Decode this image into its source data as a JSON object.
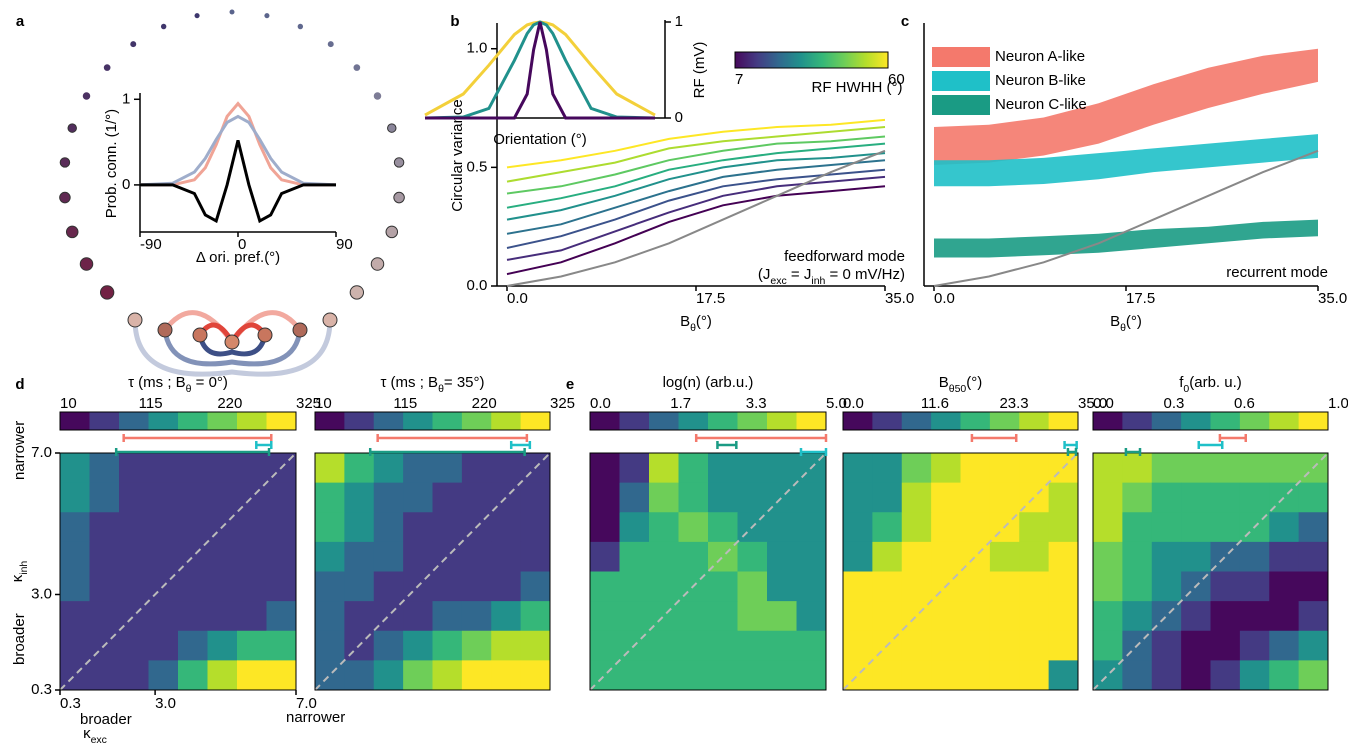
{
  "panel_labels": [
    "a",
    "b",
    "c",
    "d",
    "e"
  ],
  "colormap": [
    "#46085c",
    "#443a83",
    "#31688e",
    "#21918c",
    "#35b779",
    "#6ece58",
    "#b5de2b",
    "#fde725"
  ],
  "chart_data": [
    {
      "type": "line",
      "xlabel": "Δ ori. pref.(°)",
      "ylabel": "Prob. conn. (1/°)",
      "x": [
        -90,
        -60,
        -40,
        -30,
        -20,
        -10,
        0,
        10,
        20,
        30,
        40,
        60,
        90
      ],
      "series": [
        {
          "color": "#f0a496",
          "values": [
            0,
            0,
            0.06,
            0.2,
            0.47,
            0.8,
            0.95,
            0.8,
            0.47,
            0.2,
            0.06,
            0,
            0
          ]
        },
        {
          "color": "#9fadcb",
          "values": [
            0,
            0.02,
            0.15,
            0.31,
            0.53,
            0.73,
            0.8,
            0.73,
            0.53,
            0.31,
            0.15,
            0.02,
            0
          ]
        },
        {
          "color": "#000000",
          "values": [
            0,
            0,
            -0.1,
            -0.35,
            -0.42,
            0,
            0.52,
            0,
            -0.42,
            -0.35,
            -0.1,
            0,
            0
          ]
        }
      ],
      "xlim": [
        -90,
        90
      ],
      "ylim": [
        -0.55,
        1.05
      ],
      "xticks": [
        -90,
        0,
        90
      ],
      "yticks": [
        0,
        1
      ]
    },
    {
      "type": "line",
      "ylabel": "Circular variance",
      "xlabel": [
        "B",
        "θ",
        "(°)"
      ],
      "x": [
        0,
        5,
        10,
        15,
        20,
        25,
        30,
        35
      ],
      "series": [
        {
          "color": "#440154",
          "values": [
            0.05,
            0.1,
            0.18,
            0.27,
            0.34,
            0.38,
            0.4,
            0.42
          ]
        },
        {
          "color": "#472d7b",
          "values": [
            0.11,
            0.15,
            0.23,
            0.31,
            0.38,
            0.42,
            0.44,
            0.46
          ]
        },
        {
          "color": "#3b528b",
          "values": [
            0.16,
            0.21,
            0.28,
            0.36,
            0.42,
            0.45,
            0.47,
            0.49
          ]
        },
        {
          "color": "#2c728e",
          "values": [
            0.22,
            0.26,
            0.33,
            0.4,
            0.46,
            0.49,
            0.51,
            0.53
          ]
        },
        {
          "color": "#21918c",
          "values": [
            0.28,
            0.32,
            0.38,
            0.45,
            0.5,
            0.53,
            0.54,
            0.56
          ]
        },
        {
          "color": "#28ae80",
          "values": [
            0.33,
            0.37,
            0.42,
            0.49,
            0.53,
            0.56,
            0.58,
            0.6
          ]
        },
        {
          "color": "#5ec962",
          "values": [
            0.39,
            0.42,
            0.47,
            0.53,
            0.57,
            0.6,
            0.61,
            0.63
          ]
        },
        {
          "color": "#addc30",
          "values": [
            0.44,
            0.48,
            0.52,
            0.58,
            0.61,
            0.63,
            0.65,
            0.67
          ]
        },
        {
          "color": "#fde725",
          "values": [
            0.5,
            0.53,
            0.57,
            0.62,
            0.65,
            0.67,
            0.68,
            0.7
          ]
        },
        {
          "color": "#888888",
          "values": [
            0,
            0.04,
            0.1,
            0.18,
            0.28,
            0.38,
            0.48,
            0.57
          ]
        }
      ],
      "xlim": [
        0,
        35
      ],
      "ylim": [
        0,
        1.1
      ],
      "xticks": [
        {
          "value": 0,
          "label": "0.0"
        },
        17.5,
        {
          "value": 35,
          "label": "35.0"
        }
      ],
      "yticks": [
        {
          "value": 0,
          "label": "0.0"
        },
        0.5,
        {
          "value": 1,
          "label": "1.0"
        }
      ],
      "annotations": [
        "feedforward mode",
        [
          "(J",
          "exc",
          " = J",
          "inh",
          " = 0 mV/Hz)"
        ]
      ]
    },
    {
      "type": "line",
      "xlabel": "Orientation (°)",
      "ylabel": "RF (mV)",
      "x": [
        -90,
        -60,
        -40,
        -20,
        -10,
        -5,
        0,
        5,
        10,
        20,
        40,
        60,
        90
      ],
      "series": [
        {
          "color": "#f3d03a",
          "values": [
            0.03,
            0.25,
            0.55,
            0.87,
            0.97,
            0.99,
            1,
            0.99,
            0.97,
            0.87,
            0.55,
            0.25,
            0.03
          ]
        },
        {
          "color": "#21918c",
          "values": [
            0,
            0.01,
            0.1,
            0.6,
            0.88,
            0.97,
            1,
            0.97,
            0.88,
            0.6,
            0.1,
            0.01,
            0
          ]
        },
        {
          "color": "#46085c",
          "values": [
            0,
            0,
            0,
            0,
            0.25,
            0.71,
            1,
            0.71,
            0.25,
            0,
            0,
            0,
            0
          ]
        }
      ],
      "xlim": [
        -90,
        90
      ],
      "ylim": [
        0,
        1
      ],
      "yticks": [
        0,
        1
      ],
      "colorbar": {
        "label": "RF HWHH (°)",
        "lim": [
          7,
          60
        ],
        "ticks": [
          7,
          60
        ]
      }
    },
    {
      "type": "band",
      "xlabel": [
        "B",
        "θ",
        "(°)"
      ],
      "x": [
        0,
        5,
        10,
        15,
        20,
        25,
        30,
        35
      ],
      "series": [
        {
          "name": "Neuron A-like",
          "color": "#f4796c",
          "low": [
            0.51,
            0.52,
            0.55,
            0.6,
            0.68,
            0.75,
            0.81,
            0.86
          ],
          "high": [
            0.67,
            0.68,
            0.71,
            0.77,
            0.85,
            0.92,
            0.97,
            1
          ]
        },
        {
          "name": "Neuron B-like",
          "color": "#1fc0c8",
          "low": [
            0.42,
            0.42,
            0.43,
            0.45,
            0.48,
            0.5,
            0.52,
            0.54
          ],
          "high": [
            0.53,
            0.53,
            0.54,
            0.56,
            0.58,
            0.6,
            0.62,
            0.64
          ]
        },
        {
          "name": "Neuron C-like",
          "color": "#1a9b84",
          "low": [
            0.12,
            0.12,
            0.13,
            0.14,
            0.16,
            0.18,
            0.2,
            0.21
          ],
          "high": [
            0.2,
            0.2,
            0.21,
            0.22,
            0.24,
            0.25,
            0.27,
            0.28
          ]
        },
        {
          "color": "#888888",
          "values": [
            0,
            0.04,
            0.1,
            0.18,
            0.28,
            0.38,
            0.48,
            0.57
          ]
        }
      ],
      "xlim": [
        0,
        35
      ],
      "ylim": [
        0,
        1.1
      ],
      "xticks": [
        {
          "value": 0,
          "label": "0.0"
        },
        17.5,
        {
          "value": 35,
          "label": "35.0"
        }
      ],
      "legend": "upper left",
      "annotations": [
        "recurrent mode"
      ]
    },
    {
      "type": "heatmap",
      "title": [
        "τ (ms ; B",
        "θ",
        " = 0°)"
      ],
      "values": [
        [
          150,
          100,
          75,
          65,
          60,
          60,
          60,
          60
        ],
        [
          130,
          90,
          70,
          62,
          60,
          60,
          60,
          60
        ],
        [
          115,
          85,
          68,
          60,
          60,
          60,
          60,
          60
        ],
        [
          105,
          80,
          65,
          60,
          60,
          60,
          60,
          60
        ],
        [
          95,
          75,
          62,
          60,
          60,
          60,
          60,
          65
        ],
        [
          85,
          70,
          60,
          60,
          62,
          70,
          85,
          100
        ],
        [
          80,
          68,
          62,
          70,
          95,
          130,
          170,
          200
        ],
        [
          75,
          65,
          70,
          110,
          190,
          250,
          290,
          320
        ]
      ],
      "colorbar": {
        "lim": [
          10,
          325
        ],
        "ticks": [
          10,
          115,
          220,
          325
        ],
        "error_bars": [
          {
            "color": "#f4796c",
            "range": [
              95,
              292
            ]
          },
          {
            "color": "#1fc0c8",
            "range": [
              272,
              292
            ]
          },
          {
            "color": "#1a9b84",
            "range": [
              85,
              289
            ]
          }
        ]
      },
      "xlim": [
        0.3,
        7
      ],
      "ylim": [
        0.3,
        7
      ],
      "xticks": [
        0.3,
        {
          "value": 3,
          "label": "3.0"
        },
        {
          "value": 7,
          "label": "7.0"
        }
      ],
      "yticks": [
        0.3,
        {
          "value": 3,
          "label": "3.0"
        },
        {
          "value": 7,
          "label": "7.0"
        }
      ],
      "xlabel": [
        "κ",
        "exc"
      ],
      "ylabel": [
        "κ",
        "inh"
      ],
      "xnotes": [
        "broader",
        "narrower"
      ],
      "ynotes": [
        "broader",
        "narrower"
      ]
    },
    {
      "type": "heatmap",
      "title": [
        "τ (ms ; B",
        "θ",
        "= 35°)"
      ],
      "values": [
        [
          260,
          190,
          150,
          110,
          90,
          75,
          70,
          65
        ],
        [
          200,
          160,
          120,
          95,
          80,
          70,
          65,
          62
        ],
        [
          170,
          130,
          100,
          85,
          72,
          65,
          62,
          60
        ],
        [
          140,
          110,
          90,
          75,
          68,
          62,
          60,
          62
        ],
        [
          120,
          95,
          80,
          70,
          65,
          65,
          75,
          100
        ],
        [
          105,
          85,
          75,
          75,
          90,
          120,
          160,
          200
        ],
        [
          95,
          85,
          100,
          140,
          190,
          230,
          260,
          280
        ],
        [
          90,
          110,
          160,
          220,
          270,
          300,
          320,
          325
        ]
      ],
      "colorbar": {
        "lim": [
          10,
          325
        ],
        "ticks": [
          10,
          115,
          220,
          325
        ],
        "error_bars": [
          {
            "color": "#f4796c",
            "range": [
              94,
              294
            ]
          },
          {
            "color": "#1fc0c8",
            "range": [
              273,
              298
            ]
          },
          {
            "color": "#1a9b84",
            "range": [
              84,
              291
            ]
          }
        ]
      }
    },
    {
      "type": "heatmap",
      "title": [
        "log(n) (arb.u.)"
      ],
      "values": [
        [
          0.5,
          1,
          4,
          2.5,
          2.2,
          2.2,
          2.2,
          2.2
        ],
        [
          0.5,
          1.5,
          3.5,
          2.5,
          2.2,
          2.2,
          2.2,
          2.2
        ],
        [
          0.5,
          2,
          3,
          3.3,
          2.5,
          2.2,
          2.2,
          2.2
        ],
        [
          1,
          2.6,
          2.6,
          3,
          3.3,
          2.5,
          2.2,
          2.2
        ],
        [
          2.6,
          2.6,
          2.6,
          2.6,
          3,
          3.3,
          2.2,
          2.2
        ],
        [
          2.6,
          2.6,
          2.6,
          2.6,
          2.6,
          3.3,
          3.5,
          2.2
        ],
        [
          2.6,
          2.6,
          2.6,
          2.6,
          2.6,
          2.6,
          2.6,
          2.6
        ],
        [
          2.6,
          2.6,
          2.6,
          2.6,
          2.6,
          2.6,
          2.6,
          2.6
        ]
      ],
      "colorbar": {
        "lim": [
          0,
          5
        ],
        "ticks": [
          {
            "value": 0,
            "label": "0.0"
          },
          1.7,
          3.3,
          {
            "value": 5,
            "label": "5.0"
          }
        ],
        "error_bars": [
          {
            "color": "#f4796c",
            "range": [
              2.25,
              5
            ]
          },
          {
            "color": "#1a9b84",
            "range": [
              2.7,
              3.1
            ]
          },
          {
            "color": "#1fc0c8",
            "range": [
              4.47,
              5
            ]
          }
        ]
      }
    },
    {
      "type": "heatmap",
      "title": [
        "B",
        "θ50",
        "(°)"
      ],
      "values": [
        [
          15,
          15,
          25,
          28,
          35,
          35,
          35,
          35
        ],
        [
          15,
          15,
          28,
          35,
          35,
          35,
          35,
          28
        ],
        [
          15,
          20,
          28,
          35,
          35,
          35,
          28,
          28
        ],
        [
          15,
          28,
          35,
          35,
          35,
          28,
          28,
          35
        ],
        [
          35,
          35,
          35,
          35,
          35,
          35,
          35,
          35
        ],
        [
          35,
          35,
          35,
          35,
          35,
          35,
          35,
          35
        ],
        [
          35,
          35,
          35,
          35,
          35,
          35,
          35,
          35
        ],
        [
          35,
          35,
          35,
          35,
          35,
          35,
          35,
          15
        ]
      ],
      "colorbar": {
        "lim": [
          0,
          35
        ],
        "ticks": [
          {
            "value": 0,
            "label": "0.0"
          },
          11.6,
          23.3,
          {
            "value": 35,
            "label": "35.0"
          }
        ],
        "error_bars": [
          {
            "color": "#f4796c",
            "range": [
              19.2,
              25.8
            ]
          },
          {
            "color": "#1fc0c8",
            "range": [
              33,
              34.8
            ]
          },
          {
            "color": "#1a9b84",
            "range": [
              33.5,
              34.7
            ]
          }
        ]
      }
    },
    {
      "type": "heatmap",
      "title": [
        "f",
        "0",
        "(arb. u.)"
      ],
      "values": [
        [
          0.75,
          0.75,
          0.7,
          0.7,
          0.7,
          0.7,
          0.7,
          0.7
        ],
        [
          0.75,
          0.7,
          0.6,
          0.6,
          0.6,
          0.6,
          0.6,
          0.5
        ],
        [
          0.75,
          0.6,
          0.5,
          0.5,
          0.5,
          0.5,
          0.4,
          0.3
        ],
        [
          0.7,
          0.5,
          0.45,
          0.4,
          0.35,
          0.3,
          0.2,
          0.15
        ],
        [
          0.65,
          0.5,
          0.4,
          0.3,
          0.2,
          0.15,
          0.1,
          0.1
        ],
        [
          0.6,
          0.45,
          0.3,
          0.2,
          0.1,
          0.1,
          0.1,
          0.15
        ],
        [
          0.5,
          0.35,
          0.2,
          0.1,
          0.1,
          0.15,
          0.3,
          0.4
        ],
        [
          0.4,
          0.25,
          0.15,
          0.1,
          0.2,
          0.4,
          0.6,
          0.7
        ]
      ],
      "colorbar": {
        "lim": [
          0,
          1
        ],
        "ticks": [
          {
            "value": 0,
            "label": "0.0"
          },
          0.3,
          0.6,
          {
            "value": 1,
            "label": "1.0"
          }
        ],
        "error_bars": [
          {
            "color": "#f4796c",
            "range": [
              0.54,
              0.65
            ]
          },
          {
            "color": "#1fc0c8",
            "range": [
              0.45,
              0.55
            ]
          },
          {
            "color": "#1a9b84",
            "range": [
              0.14,
              0.2
            ]
          }
        ]
      }
    }
  ]
}
